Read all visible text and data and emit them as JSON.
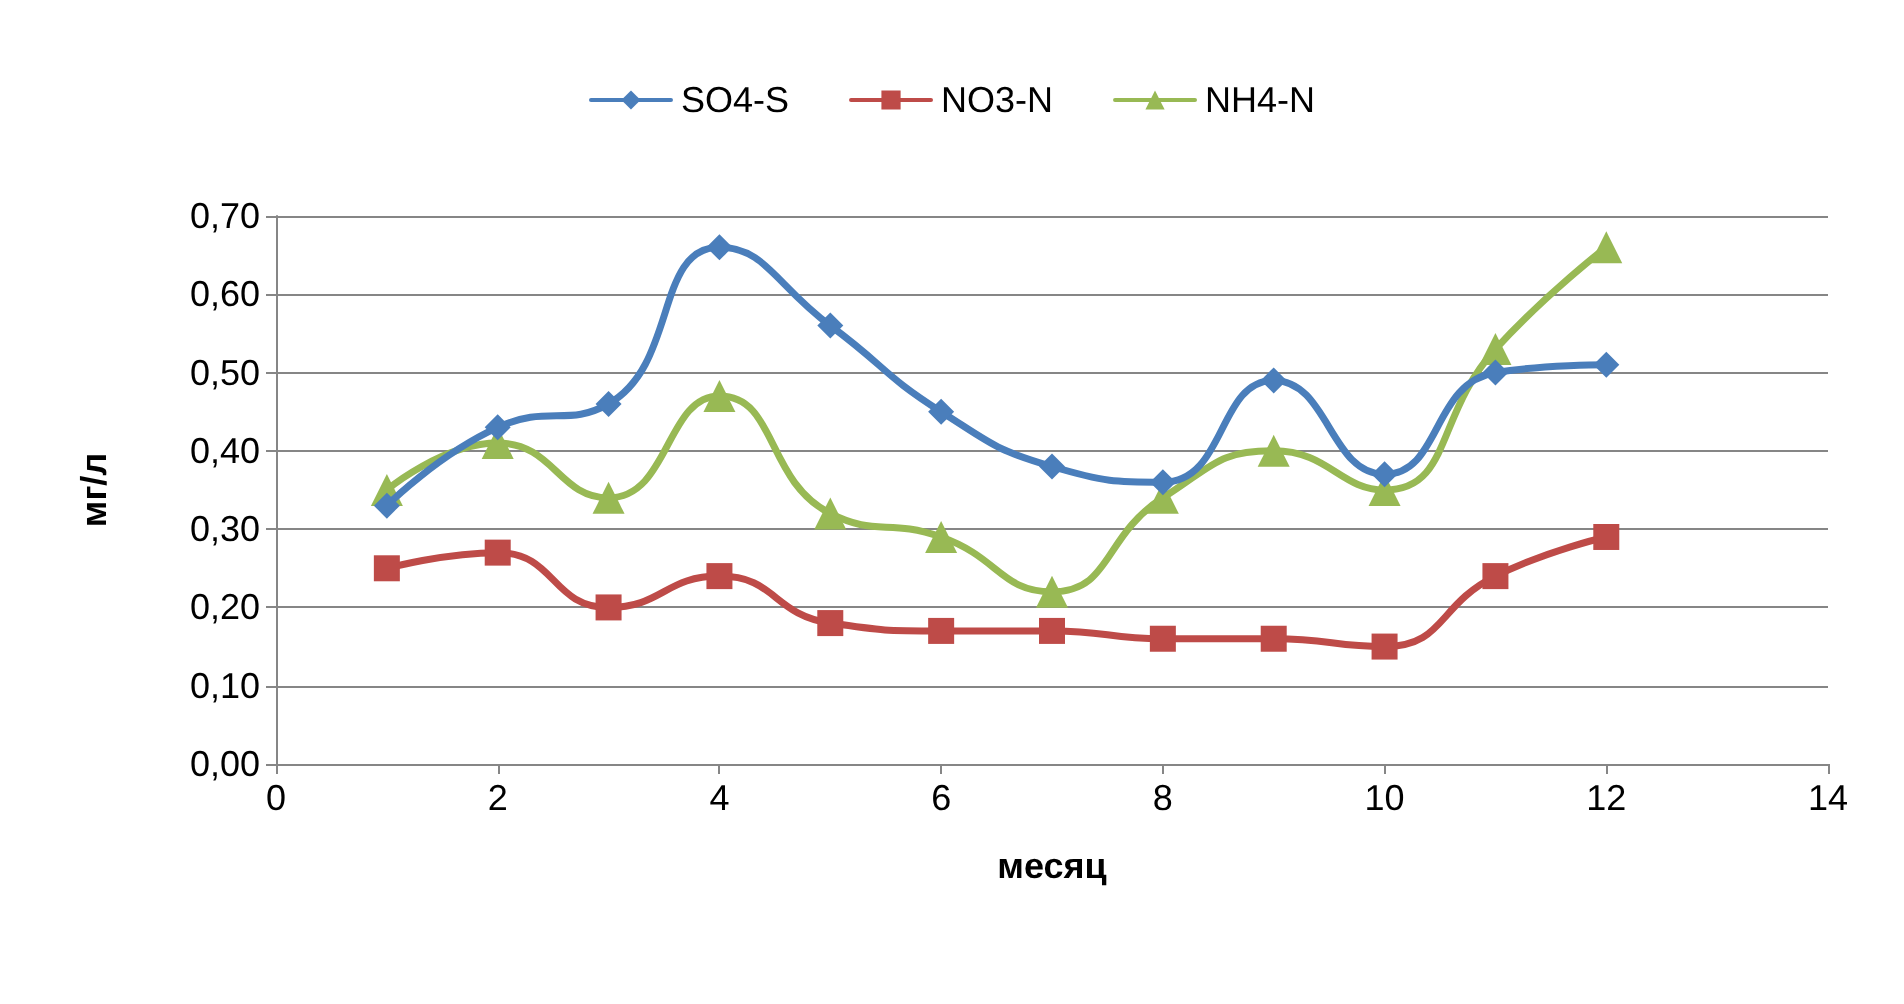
{
  "chart_data": {
    "type": "line",
    "xlabel": "месяц",
    "ylabel": "мг/л",
    "x": [
      1,
      2,
      3,
      4,
      5,
      6,
      7,
      8,
      9,
      10,
      11,
      12
    ],
    "series": [
      {
        "name": "SO4-S",
        "color": "#4a7ebb",
        "marker": "diamond",
        "values": [
          0.33,
          0.43,
          0.46,
          0.66,
          0.56,
          0.45,
          0.38,
          0.36,
          0.49,
          0.37,
          0.5,
          0.51
        ]
      },
      {
        "name": "NO3-N",
        "color": "#be4b48",
        "marker": "square",
        "values": [
          0.25,
          0.27,
          0.2,
          0.24,
          0.18,
          0.17,
          0.17,
          0.16,
          0.16,
          0.15,
          0.24,
          0.29
        ]
      },
      {
        "name": "NH4-N",
        "color": "#98b954",
        "marker": "triangle",
        "values": [
          0.35,
          0.41,
          0.34,
          0.47,
          0.32,
          0.29,
          0.22,
          0.34,
          0.4,
          0.35,
          0.53,
          0.66
        ]
      }
    ],
    "xlim": [
      0,
      14
    ],
    "xticks": [
      0,
      2,
      4,
      6,
      8,
      10,
      12,
      14
    ],
    "ylim": [
      0,
      0.7
    ],
    "yticks": [
      {
        "value": 0,
        "label": "0,00"
      },
      {
        "value": 0.1,
        "label": "0,10"
      },
      {
        "value": 0.2,
        "label": "0,20"
      },
      {
        "value": 0.3,
        "label": "0,30"
      },
      {
        "value": 0.4,
        "label": "0,40"
      },
      {
        "value": 0.5,
        "label": "0,50"
      },
      {
        "value": 0.6,
        "label": "0,60"
      },
      {
        "value": 0.7,
        "label": "0,70"
      }
    ],
    "grid": "y",
    "legend": "top",
    "line_style": "solid"
  }
}
